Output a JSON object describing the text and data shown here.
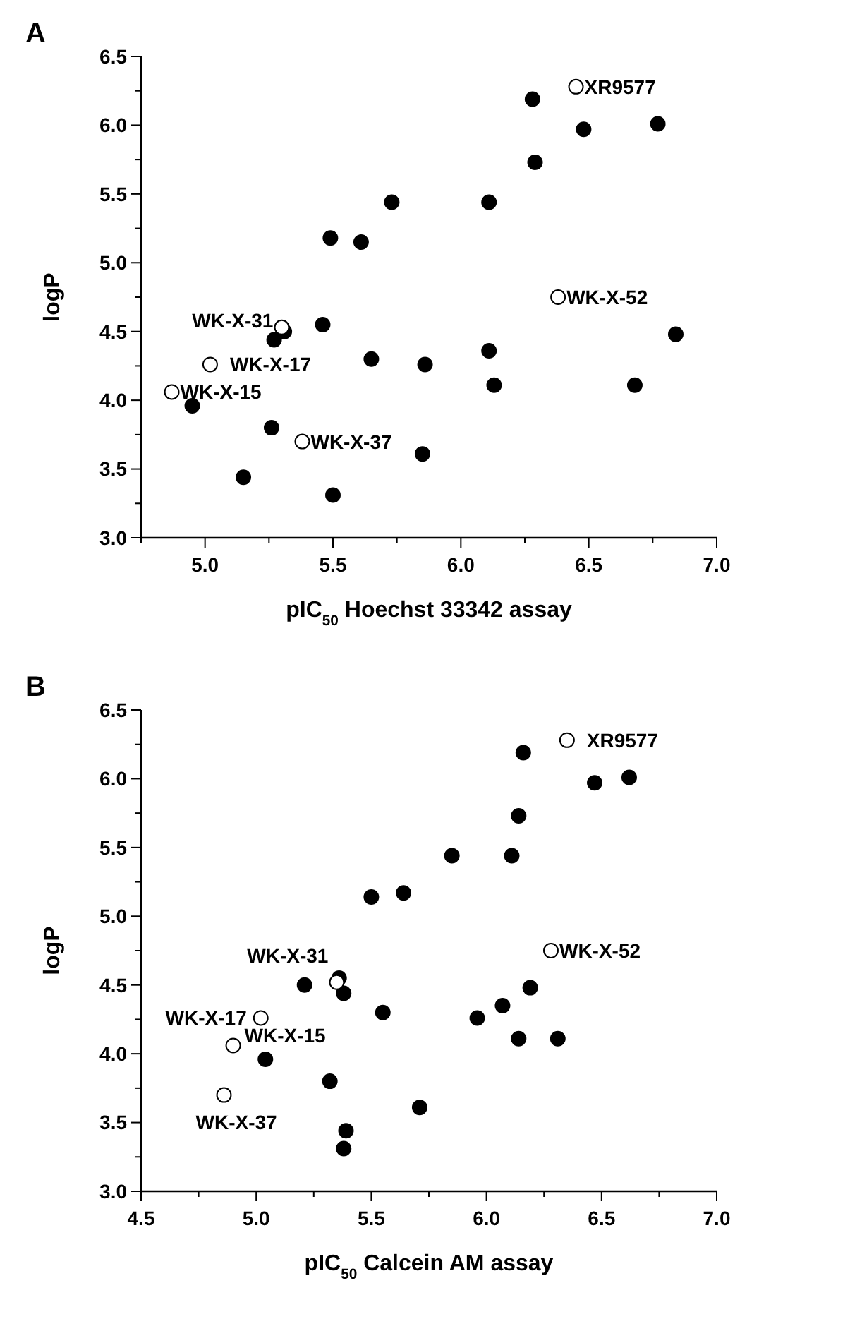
{
  "chart_data": [
    {
      "type": "scatter",
      "title": "A",
      "xlabel": "pIC$_{50}$  Hoechst 33342 assay",
      "ylabel": "logP",
      "marker": "circle",
      "xlim": [
        4.75,
        7.0
      ],
      "xticks": [
        {
          "value": 4.75,
          "label": null
        },
        {
          "value": 5,
          "label": "5.0"
        },
        {
          "value": 5.25,
          "label": null
        },
        5.5,
        {
          "value": 5.75,
          "label": null
        },
        {
          "value": 6,
          "label": "6.0"
        },
        {
          "value": 6.25,
          "label": null
        },
        6.5,
        {
          "value": 6.75,
          "label": null
        },
        {
          "value": 7,
          "label": "7.0"
        }
      ],
      "ylim": [
        3.0,
        6.5
      ],
      "yticks": [
        {
          "value": 3,
          "label": "3.0"
        },
        {
          "value": 3.25,
          "label": null
        },
        3.5,
        {
          "value": 3.75,
          "label": null
        },
        {
          "value": 4,
          "label": "4.0"
        },
        {
          "value": 4.25,
          "label": null
        },
        4.5,
        {
          "value": 4.75,
          "label": null
        },
        {
          "value": 5,
          "label": "5.0"
        },
        {
          "value": 5.25,
          "label": null
        },
        5.5,
        {
          "value": 5.75,
          "label": null
        },
        {
          "value": 6,
          "label": "6.0"
        },
        {
          "value": 6.25,
          "label": null
        },
        6.5
      ],
      "series": [
        {
          "color": "#000000",
          "x": [
            6.28,
            6.48,
            6.77,
            6.29,
            5.73,
            6.11,
            5.49,
            5.61,
            5.46,
            5.27,
            5.31,
            6.84,
            5.65,
            5.86,
            6.11,
            6.13,
            6.68,
            4.95,
            5.26,
            5.15,
            5.85,
            5.5
          ],
          "values": [
            6.19,
            5.97,
            6.01,
            5.73,
            5.44,
            5.44,
            5.18,
            5.15,
            4.55,
            4.44,
            4.5,
            4.48,
            4.3,
            4.26,
            4.36,
            4.11,
            4.11,
            3.96,
            3.8,
            3.44,
            3.61,
            3.31
          ]
        },
        {
          "color": "#ffffff",
          "x": [
            6.45,
            6.38,
            5.3,
            5.02,
            4.87,
            5.38
          ],
          "values": [
            6.28,
            4.75,
            4.53,
            4.26,
            4.06,
            3.7
          ]
        }
      ],
      "annotations": [
        {
          "text": "XR9577",
          "x": 6.45,
          "y": 6.28
        },
        {
          "text": "WK-X-52",
          "x": 6.38,
          "y": 4.75
        },
        {
          "text": "WK-X-31",
          "x": 5.3,
          "y": 4.53
        },
        {
          "text": "WK-X-17",
          "x": 5.02,
          "y": 4.26
        },
        {
          "text": "WK-X-15",
          "x": 4.87,
          "y": 4.06
        },
        {
          "text": "WK-X-37",
          "x": 5.38,
          "y": 3.7
        }
      ]
    },
    {
      "type": "scatter",
      "title": "B",
      "xlabel": "pIC$_{50}$ Calcein AM assay",
      "ylabel": "logP",
      "marker": "circle",
      "xlim": [
        4.5,
        7.0
      ],
      "xticks": [
        4.5,
        {
          "value": 4.75,
          "label": null
        },
        {
          "value": 5,
          "label": "5.0"
        },
        {
          "value": 5.25,
          "label": null
        },
        5.5,
        {
          "value": 5.75,
          "label": null
        },
        {
          "value": 6,
          "label": "6.0"
        },
        {
          "value": 6.25,
          "label": null
        },
        6.5,
        {
          "value": 6.75,
          "label": null
        },
        {
          "value": 7,
          "label": "7.0"
        }
      ],
      "ylim": [
        3.0,
        6.5
      ],
      "yticks": [
        {
          "value": 3,
          "label": "3.0"
        },
        {
          "value": 3.25,
          "label": null
        },
        3.5,
        {
          "value": 3.75,
          "label": null
        },
        {
          "value": 4,
          "label": "4.0"
        },
        {
          "value": 4.25,
          "label": null
        },
        4.5,
        {
          "value": 4.75,
          "label": null
        },
        {
          "value": 5,
          "label": "5.0"
        },
        {
          "value": 5.25,
          "label": null
        },
        5.5,
        {
          "value": 5.75,
          "label": null
        },
        {
          "value": 6,
          "label": "6.0"
        },
        {
          "value": 6.25,
          "label": null
        },
        6.5
      ],
      "series": [
        {
          "color": "#000000",
          "x": [
            6.16,
            6.47,
            6.62,
            6.14,
            5.85,
            6.11,
            5.5,
            5.64,
            5.21,
            5.36,
            5.38,
            6.19,
            5.55,
            5.96,
            6.07,
            6.14,
            6.31,
            5.04,
            5.32,
            5.39,
            5.38,
            5.71
          ],
          "values": [
            6.19,
            5.97,
            6.01,
            5.73,
            5.44,
            5.44,
            5.14,
            5.17,
            4.5,
            4.55,
            4.44,
            4.48,
            4.3,
            4.26,
            4.35,
            4.11,
            4.11,
            3.96,
            3.8,
            3.44,
            3.31,
            3.61
          ]
        },
        {
          "color": "#ffffff",
          "x": [
            6.35,
            6.28,
            5.35,
            5.02,
            4.9,
            4.86
          ],
          "values": [
            6.28,
            4.75,
            4.52,
            4.26,
            4.06,
            3.7
          ]
        }
      ],
      "annotations": [
        {
          "text": "XR9577",
          "x": 6.35,
          "y": 6.28
        },
        {
          "text": "WK-X-52",
          "x": 6.28,
          "y": 4.75
        },
        {
          "text": "WK-X-31",
          "x": 5.35,
          "y": 4.52
        },
        {
          "text": "WK-X-17",
          "x": 5.02,
          "y": 4.26
        },
        {
          "text": "WK-X-15",
          "x": 4.9,
          "y": 4.06
        },
        {
          "text": "WK-X-37",
          "x": 4.86,
          "y": 3.7
        }
      ]
    }
  ]
}
